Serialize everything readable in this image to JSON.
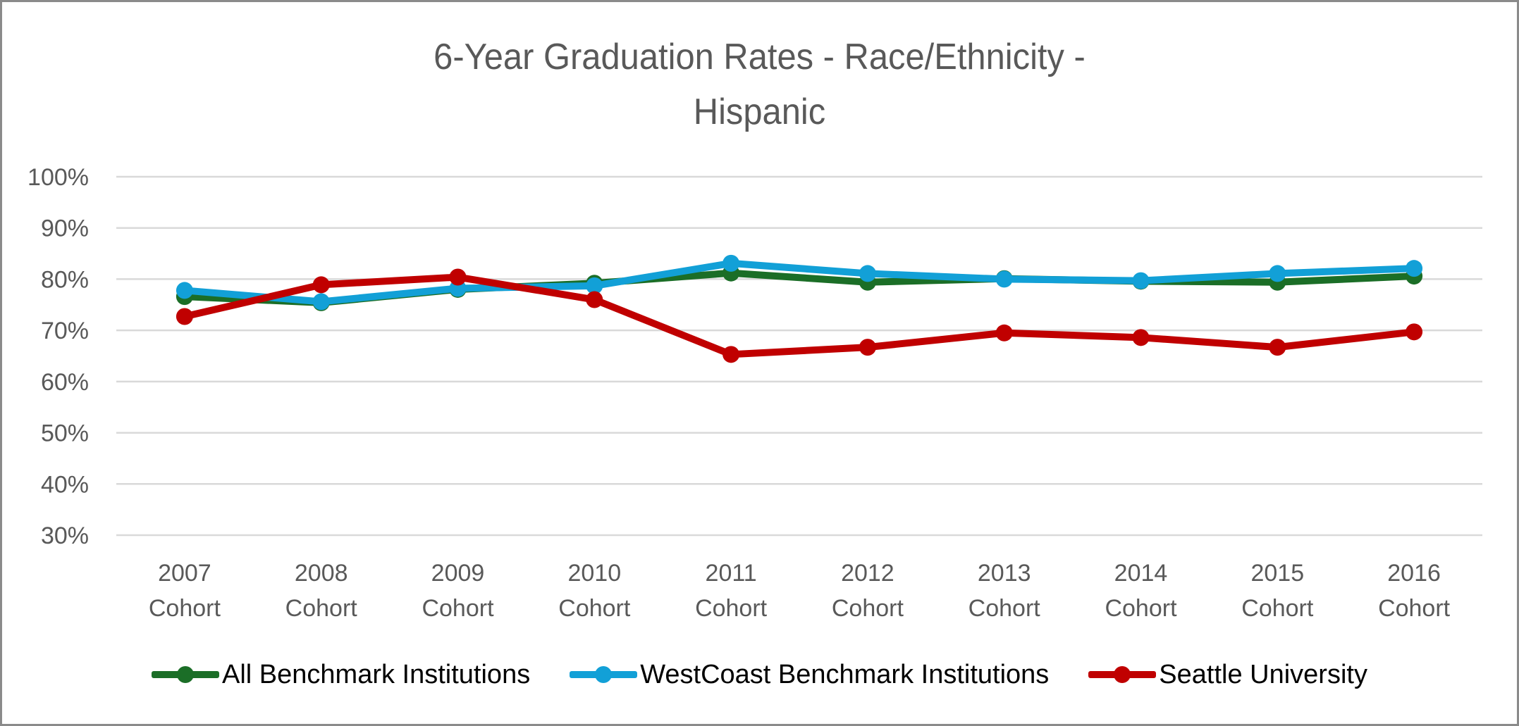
{
  "chart_data": {
    "type": "line",
    "title": "6-Year Graduation Rates - Race/Ethnicity - Hispanic",
    "title_lines": [
      "6-Year Graduation Rates - Race/Ethnicity -",
      "Hispanic"
    ],
    "xlabel": "",
    "ylabel": "",
    "categories": [
      [
        "2007",
        "Cohort"
      ],
      [
        "2008",
        "Cohort"
      ],
      [
        "2009",
        "Cohort"
      ],
      [
        "2010",
        "Cohort"
      ],
      [
        "2011",
        "Cohort"
      ],
      [
        "2012",
        "Cohort"
      ],
      [
        "2013",
        "Cohort"
      ],
      [
        "2014",
        "Cohort"
      ],
      [
        "2015",
        "Cohort"
      ],
      [
        "2016",
        "Cohort"
      ]
    ],
    "ylim": [
      30,
      100
    ],
    "yticks": [
      100,
      90,
      80,
      70,
      60,
      50,
      40,
      30
    ],
    "ytick_labels": [
      "100%",
      "90%",
      "80%",
      "70%",
      "60%",
      "50%",
      "40%",
      "30%"
    ],
    "grid": true,
    "legend_position": "bottom",
    "series": [
      {
        "name": "All Benchmark Institutions",
        "color": "#1b6e27",
        "values": [
          76.6,
          75.4,
          78.0,
          79.2,
          81.2,
          79.4,
          80.1,
          79.6,
          79.4,
          80.6
        ]
      },
      {
        "name": "WestCoast Benchmark Institutions",
        "color": "#12a0d7",
        "values": [
          77.8,
          75.6,
          78.2,
          78.7,
          83.1,
          81.1,
          80.0,
          79.7,
          81.1,
          82.1
        ]
      },
      {
        "name": "Seattle University",
        "color": "#c00000",
        "values": [
          72.7,
          78.9,
          80.4,
          76.0,
          65.3,
          66.7,
          69.5,
          68.6,
          66.7,
          69.7
        ]
      }
    ]
  }
}
